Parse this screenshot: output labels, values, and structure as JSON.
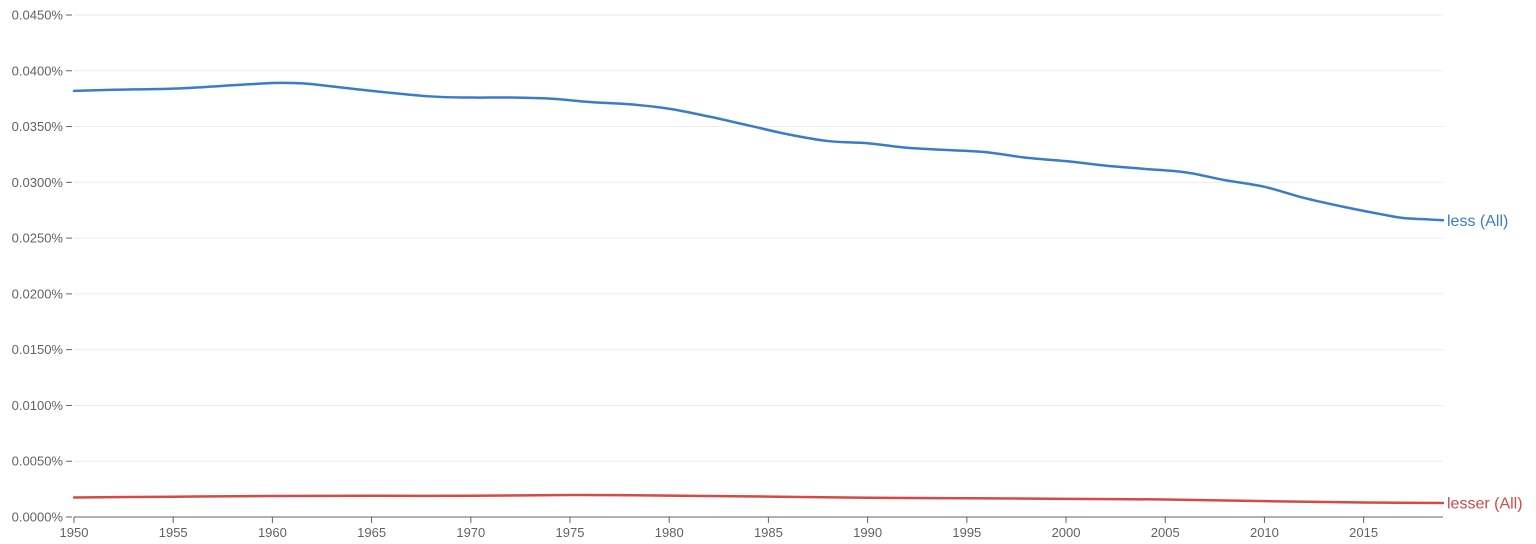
{
  "chart_data": {
    "type": "line",
    "title": "",
    "xlabel": "",
    "ylabel": "",
    "xlim": [
      1950,
      2019
    ],
    "ylim": [
      0,
      0.045
    ],
    "grid": true,
    "y_ticks": [
      {
        "value": 0.0,
        "label": "0.0000%"
      },
      {
        "value": 0.005,
        "label": "0.0050%"
      },
      {
        "value": 0.01,
        "label": "0.0100%"
      },
      {
        "value": 0.015,
        "label": "0.0150%"
      },
      {
        "value": 0.02,
        "label": "0.0200%"
      },
      {
        "value": 0.025,
        "label": "0.0250%"
      },
      {
        "value": 0.03,
        "label": "0.0300%"
      },
      {
        "value": 0.035,
        "label": "0.0350%"
      },
      {
        "value": 0.04,
        "label": "0.0400%"
      },
      {
        "value": 0.045,
        "label": "0.0450%"
      }
    ],
    "x_ticks": [
      {
        "value": 1950,
        "label": "1950"
      },
      {
        "value": 1955,
        "label": "1955"
      },
      {
        "value": 1960,
        "label": "1960"
      },
      {
        "value": 1965,
        "label": "1965"
      },
      {
        "value": 1970,
        "label": "1970"
      },
      {
        "value": 1975,
        "label": "1975"
      },
      {
        "value": 1980,
        "label": "1980"
      },
      {
        "value": 1985,
        "label": "1985"
      },
      {
        "value": 1990,
        "label": "1990"
      },
      {
        "value": 1995,
        "label": "1995"
      },
      {
        "value": 2000,
        "label": "2000"
      },
      {
        "value": 2005,
        "label": "2005"
      },
      {
        "value": 2010,
        "label": "2010"
      },
      {
        "value": 2015,
        "label": "2015"
      }
    ],
    "series": [
      {
        "name": "less (All)",
        "color": "#3a7dc7",
        "x": [
          1950,
          1952,
          1955,
          1958,
          1960,
          1961,
          1962,
          1965,
          1968,
          1970,
          1972,
          1974,
          1976,
          1978,
          1980,
          1982,
          1984,
          1986,
          1988,
          1990,
          1992,
          1994,
          1996,
          1998,
          2000,
          2002,
          2004,
          2006,
          2008,
          2010,
          2012,
          2014,
          2016,
          2017,
          2018,
          2019
        ],
        "y": [
          0.0382,
          0.0383,
          0.0384,
          0.0387,
          0.0389,
          0.0389,
          0.0388,
          0.0382,
          0.0377,
          0.0376,
          0.0376,
          0.0375,
          0.0372,
          0.037,
          0.0366,
          0.0359,
          0.0351,
          0.0343,
          0.0337,
          0.0335,
          0.0331,
          0.0329,
          0.0327,
          0.0322,
          0.0319,
          0.0315,
          0.0312,
          0.0309,
          0.0302,
          0.0296,
          0.0286,
          0.0278,
          0.0271,
          0.0268,
          0.0267,
          0.0266
        ]
      },
      {
        "name": "lesser (All)",
        "color": "#d44a44",
        "x": [
          1950,
          1955,
          1960,
          1965,
          1970,
          1975,
          1978,
          1980,
          1985,
          1990,
          1995,
          2000,
          2005,
          2010,
          2015,
          2019
        ],
        "y": [
          0.00175,
          0.00182,
          0.00188,
          0.0019,
          0.0019,
          0.00197,
          0.00195,
          0.00192,
          0.00183,
          0.00173,
          0.00168,
          0.00163,
          0.00157,
          0.00142,
          0.0013,
          0.00125
        ]
      }
    ]
  }
}
